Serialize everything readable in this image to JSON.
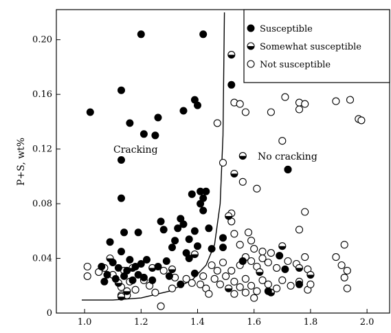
{
  "chart_data": {
    "type": "scatter",
    "title": "",
    "xlabel": "",
    "ylabel": "P+S, wt%",
    "xlim": [
      0.9,
      2.08
    ],
    "ylim": [
      0.0,
      0.222
    ],
    "xticks": [
      1.0,
      1.2,
      1.4,
      1.6,
      1.8,
      2.0
    ],
    "xtick_labels": [
      "1.0",
      "1.2",
      "1.4",
      "1.6",
      "1.8",
      "2.0"
    ],
    "yticks": [
      0,
      0.04,
      0.08,
      0.12,
      0.16,
      0.2
    ],
    "ytick_labels": [
      "0",
      "0.04",
      "0.08",
      "0.12",
      "0.16",
      "0.20"
    ],
    "grid": false,
    "legend_position": "top-right",
    "region_labels": [
      "Cracking",
      "No cracking"
    ],
    "boundary_curve": [
      [
        0.99,
        0.0095
      ],
      [
        1.1,
        0.0095
      ],
      [
        1.2,
        0.011
      ],
      [
        1.3,
        0.016
      ],
      [
        1.38,
        0.024
      ],
      [
        1.43,
        0.035
      ],
      [
        1.46,
        0.05
      ],
      [
        1.48,
        0.08
      ],
      [
        1.49,
        0.13
      ],
      [
        1.495,
        0.22
      ]
    ],
    "series": [
      {
        "name": "Susceptible",
        "marker": "filled",
        "points": [
          [
            1.02,
            0.147
          ],
          [
            1.13,
            0.163
          ],
          [
            1.2,
            0.204
          ],
          [
            1.42,
            0.204
          ],
          [
            1.16,
            0.139
          ],
          [
            1.21,
            0.131
          ],
          [
            1.26,
            0.143
          ],
          [
            1.25,
            0.13
          ],
          [
            1.35,
            0.148
          ],
          [
            1.39,
            0.156
          ],
          [
            1.4,
            0.152
          ],
          [
            1.13,
            0.112
          ],
          [
            1.13,
            0.084
          ],
          [
            1.14,
            0.059
          ],
          [
            1.09,
            0.052
          ],
          [
            1.19,
            0.059
          ],
          [
            1.52,
            0.167
          ],
          [
            1.72,
            0.105
          ],
          [
            1.06,
            0.034
          ],
          [
            1.07,
            0.023
          ],
          [
            1.08,
            0.028
          ],
          [
            1.1,
            0.037
          ],
          [
            1.11,
            0.025
          ],
          [
            1.12,
            0.033
          ],
          [
            1.13,
            0.045
          ],
          [
            1.14,
            0.027
          ],
          [
            1.15,
            0.031
          ],
          [
            1.16,
            0.039
          ],
          [
            1.17,
            0.024
          ],
          [
            1.18,
            0.034
          ],
          [
            1.19,
            0.028
          ],
          [
            1.2,
            0.036
          ],
          [
            1.21,
            0.026
          ],
          [
            1.22,
            0.039
          ],
          [
            1.24,
            0.024
          ],
          [
            1.26,
            0.034
          ],
          [
            1.27,
            0.067
          ],
          [
            1.28,
            0.061
          ],
          [
            1.29,
            0.038
          ],
          [
            1.3,
            0.027
          ],
          [
            1.31,
            0.048
          ],
          [
            1.32,
            0.053
          ],
          [
            1.33,
            0.062
          ],
          [
            1.34,
            0.069
          ],
          [
            1.34,
            0.021
          ],
          [
            1.35,
            0.065
          ],
          [
            1.36,
            0.044
          ],
          [
            1.37,
            0.054
          ],
          [
            1.38,
            0.087
          ],
          [
            1.39,
            0.06
          ],
          [
            1.39,
            0.029
          ],
          [
            1.4,
            0.049
          ],
          [
            1.41,
            0.089
          ],
          [
            1.41,
            0.08
          ],
          [
            1.42,
            0.084
          ],
          [
            1.42,
            0.075
          ],
          [
            1.43,
            0.089
          ],
          [
            1.44,
            0.062
          ],
          [
            1.45,
            0.047
          ],
          [
            1.37,
            0.04
          ],
          [
            1.49,
            0.055
          ],
          [
            1.49,
            0.048
          ],
          [
            1.56,
            0.038
          ],
          [
            1.71,
            0.032
          ],
          [
            1.65,
            0.016
          ],
          [
            1.69,
            0.042
          ],
          [
            1.76,
            0.021
          ]
        ]
      },
      {
        "name": "Somewhat susceptible",
        "marker": "half",
        "points": [
          [
            1.52,
            0.189
          ],
          [
            1.72,
            0.105
          ],
          [
            1.53,
            0.102
          ],
          [
            1.56,
            0.115
          ],
          [
            1.09,
            0.04
          ],
          [
            1.12,
            0.022
          ],
          [
            1.13,
            0.013
          ],
          [
            1.15,
            0.016
          ],
          [
            1.17,
            0.033
          ],
          [
            1.13,
            0.012
          ],
          [
            1.24,
            0.033
          ],
          [
            1.31,
            0.032
          ],
          [
            1.39,
            0.043
          ],
          [
            1.51,
            0.071
          ],
          [
            1.56,
            0.038
          ],
          [
            1.62,
            0.03
          ],
          [
            1.7,
            0.049
          ],
          [
            1.76,
            0.033
          ],
          [
            1.8,
            0.028
          ],
          [
            1.66,
            0.015
          ],
          [
            1.51,
            0.018
          ]
        ]
      },
      {
        "name": "Not susceptible",
        "marker": "open",
        "points": [
          [
            1.53,
            0.154
          ],
          [
            1.55,
            0.153
          ],
          [
            1.57,
            0.147
          ],
          [
            1.66,
            0.147
          ],
          [
            1.71,
            0.158
          ],
          [
            1.76,
            0.149
          ],
          [
            1.76,
            0.154
          ],
          [
            1.78,
            0.153
          ],
          [
            1.89,
            0.155
          ],
          [
            1.94,
            0.156
          ],
          [
            1.97,
            0.142
          ],
          [
            1.98,
            0.141
          ],
          [
            1.47,
            0.139
          ],
          [
            1.7,
            0.126
          ],
          [
            1.49,
            0.11
          ],
          [
            1.56,
            0.096
          ],
          [
            1.61,
            0.091
          ],
          [
            1.52,
            0.073
          ],
          [
            1.76,
            0.061
          ],
          [
            1.78,
            0.074
          ],
          [
            1.52,
            0.067
          ],
          [
            1.53,
            0.058
          ],
          [
            1.58,
            0.059
          ],
          [
            1.59,
            0.053
          ],
          [
            1.55,
            0.05
          ],
          [
            1.6,
            0.047
          ],
          [
            1.63,
            0.045
          ],
          [
            1.66,
            0.044
          ],
          [
            1.92,
            0.05
          ],
          [
            1.49,
            0.037
          ],
          [
            1.52,
            0.031
          ],
          [
            1.55,
            0.035
          ],
          [
            1.57,
            0.041
          ],
          [
            1.59,
            0.038
          ],
          [
            1.61,
            0.034
          ],
          [
            1.63,
            0.04
          ],
          [
            1.65,
            0.037
          ],
          [
            1.68,
            0.033
          ],
          [
            1.72,
            0.038
          ],
          [
            1.75,
            0.036
          ],
          [
            1.78,
            0.041
          ],
          [
            1.79,
            0.032
          ],
          [
            1.89,
            0.041
          ],
          [
            1.91,
            0.035
          ],
          [
            1.93,
            0.031
          ],
          [
            1.46,
            0.025
          ],
          [
            1.48,
            0.021
          ],
          [
            1.5,
            0.027
          ],
          [
            1.53,
            0.023
          ],
          [
            1.55,
            0.019
          ],
          [
            1.57,
            0.025
          ],
          [
            1.59,
            0.02
          ],
          [
            1.61,
            0.016
          ],
          [
            1.63,
            0.024
          ],
          [
            1.65,
            0.021
          ],
          [
            1.68,
            0.018
          ],
          [
            1.7,
            0.024
          ],
          [
            1.73,
            0.02
          ],
          [
            1.76,
            0.023
          ],
          [
            1.79,
            0.017
          ],
          [
            1.8,
            0.021
          ],
          [
            1.92,
            0.026
          ],
          [
            1.93,
            0.018
          ],
          [
            1.53,
            0.014
          ],
          [
            1.57,
            0.015
          ],
          [
            1.6,
            0.011
          ],
          [
            1.27,
            0.005
          ],
          [
            1.01,
            0.027
          ],
          [
            1.01,
            0.034
          ],
          [
            1.05,
            0.03
          ],
          [
            1.07,
            0.033
          ],
          [
            1.1,
            0.028
          ],
          [
            1.13,
            0.019
          ],
          [
            1.14,
            0.031
          ],
          [
            1.16,
            0.023
          ],
          [
            1.18,
            0.017
          ],
          [
            1.21,
            0.024
          ],
          [
            1.23,
            0.02
          ],
          [
            1.28,
            0.031
          ],
          [
            1.32,
            0.026
          ],
          [
            1.36,
            0.025
          ],
          [
            1.38,
            0.022
          ],
          [
            1.41,
            0.021
          ],
          [
            1.42,
            0.027
          ],
          [
            1.43,
            0.018
          ],
          [
            1.45,
            0.035
          ],
          [
            1.47,
            0.031
          ],
          [
            1.44,
            0.014
          ],
          [
            1.31,
            0.018
          ],
          [
            1.25,
            0.015
          ],
          [
            1.15,
            0.013
          ]
        ]
      }
    ]
  }
}
